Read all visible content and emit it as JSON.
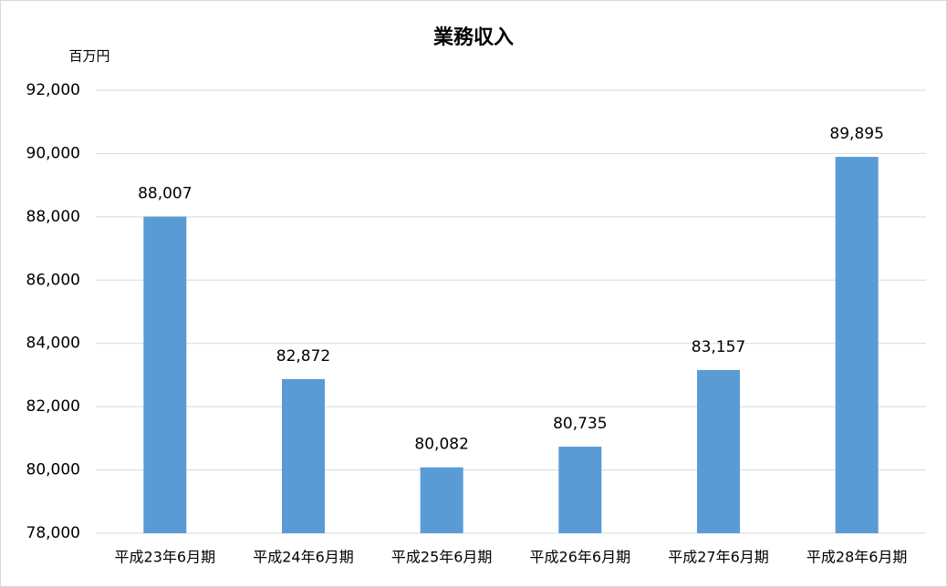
{
  "chart_data": {
    "type": "bar",
    "title": "業務収入",
    "ylabel": "百万円",
    "categories": [
      "平成23年6月期",
      "平成24年6月期",
      "平成25年6月期",
      "平成26年6月期",
      "平成27年6月期",
      "平成28年6月期"
    ],
    "values": [
      88007,
      82872,
      80082,
      80735,
      83157,
      89895
    ],
    "value_labels": [
      "88,007",
      "82,872",
      "80,082",
      "80,735",
      "83,157",
      "89,895"
    ],
    "color": "#5b9bd5",
    "ylim": [
      78000,
      92000
    ],
    "yticks": [
      {
        "value": 78000,
        "label": "78,000"
      },
      {
        "value": 80000,
        "label": "80,000"
      },
      {
        "value": 82000,
        "label": "82,000"
      },
      {
        "value": 84000,
        "label": "84,000"
      },
      {
        "value": 86000,
        "label": "86,000"
      },
      {
        "value": 88000,
        "label": "88,000"
      },
      {
        "value": 90000,
        "label": "90,000"
      },
      {
        "value": 92000,
        "label": "92,000"
      }
    ],
    "grid": true
  }
}
